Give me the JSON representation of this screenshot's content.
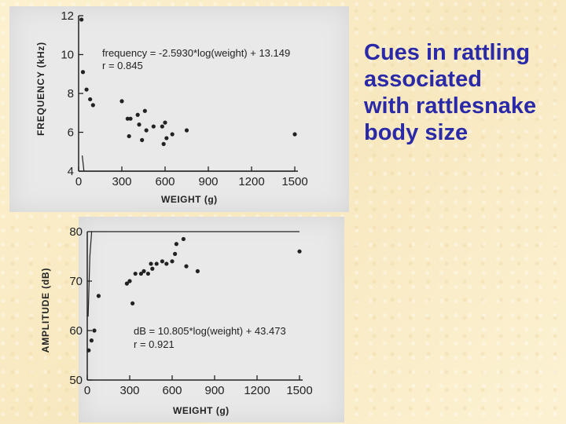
{
  "slide": {
    "title_lines": [
      "Cues in rattling",
      "associated",
      "with rattlesnake",
      "body size"
    ],
    "title_color": "#2a2aa8"
  },
  "chart_data": [
    {
      "type": "scatter",
      "title": "",
      "xlabel": "WEIGHT (g)",
      "ylabel": "FREQUENCY (kHz)",
      "xlim": [
        0,
        1500
      ],
      "ylim": [
        4,
        12
      ],
      "xticks": [
        0,
        300,
        600,
        900,
        1200,
        1500
      ],
      "yticks": [
        4,
        6,
        8,
        10,
        12
      ],
      "annotations": [
        "frequency = -2.5930*log(weight) + 13.149",
        "r = 0.845"
      ],
      "fit": {
        "form": "log",
        "slope": -2.593,
        "intercept": 13.149
      },
      "points": [
        {
          "x": 20,
          "y": 11.8
        },
        {
          "x": 30,
          "y": 9.1
        },
        {
          "x": 55,
          "y": 8.2
        },
        {
          "x": 80,
          "y": 7.7
        },
        {
          "x": 100,
          "y": 7.4
        },
        {
          "x": 300,
          "y": 7.6
        },
        {
          "x": 340,
          "y": 6.7
        },
        {
          "x": 350,
          "y": 5.8
        },
        {
          "x": 360,
          "y": 6.7
        },
        {
          "x": 410,
          "y": 6.9
        },
        {
          "x": 420,
          "y": 6.4
        },
        {
          "x": 440,
          "y": 5.6
        },
        {
          "x": 460,
          "y": 7.1
        },
        {
          "x": 470,
          "y": 6.1
        },
        {
          "x": 520,
          "y": 6.3
        },
        {
          "x": 580,
          "y": 6.3
        },
        {
          "x": 590,
          "y": 5.4
        },
        {
          "x": 600,
          "y": 6.5
        },
        {
          "x": 610,
          "y": 5.7
        },
        {
          "x": 650,
          "y": 5.9
        },
        {
          "x": 750,
          "y": 6.1
        },
        {
          "x": 1500,
          "y": 5.9
        }
      ]
    },
    {
      "type": "scatter",
      "title": "",
      "xlabel": "WEIGHT (g)",
      "ylabel": "AMPLITUDE (dB)",
      "xlim": [
        0,
        1500
      ],
      "ylim": [
        50,
        80
      ],
      "xticks": [
        0,
        300,
        600,
        900,
        1200,
        1500
      ],
      "yticks": [
        50,
        60,
        70,
        80
      ],
      "annotations": [
        "dB = 10.805*log(weight) + 43.473",
        "r = 0.921"
      ],
      "fit": {
        "form": "log",
        "slope": 10.805,
        "intercept": 43.473
      },
      "points": [
        {
          "x": 10,
          "y": 56
        },
        {
          "x": 30,
          "y": 58
        },
        {
          "x": 50,
          "y": 60
        },
        {
          "x": 80,
          "y": 67
        },
        {
          "x": 280,
          "y": 69.5
        },
        {
          "x": 300,
          "y": 70
        },
        {
          "x": 320,
          "y": 65.5
        },
        {
          "x": 340,
          "y": 71.5
        },
        {
          "x": 380,
          "y": 71.5
        },
        {
          "x": 400,
          "y": 72
        },
        {
          "x": 430,
          "y": 71.5
        },
        {
          "x": 450,
          "y": 73.5
        },
        {
          "x": 460,
          "y": 72.5
        },
        {
          "x": 490,
          "y": 73.5
        },
        {
          "x": 530,
          "y": 74
        },
        {
          "x": 560,
          "y": 73.5
        },
        {
          "x": 600,
          "y": 74
        },
        {
          "x": 620,
          "y": 75.5
        },
        {
          "x": 630,
          "y": 77.5
        },
        {
          "x": 680,
          "y": 78.5
        },
        {
          "x": 700,
          "y": 73
        },
        {
          "x": 780,
          "y": 72
        },
        {
          "x": 1500,
          "y": 76
        }
      ]
    }
  ]
}
